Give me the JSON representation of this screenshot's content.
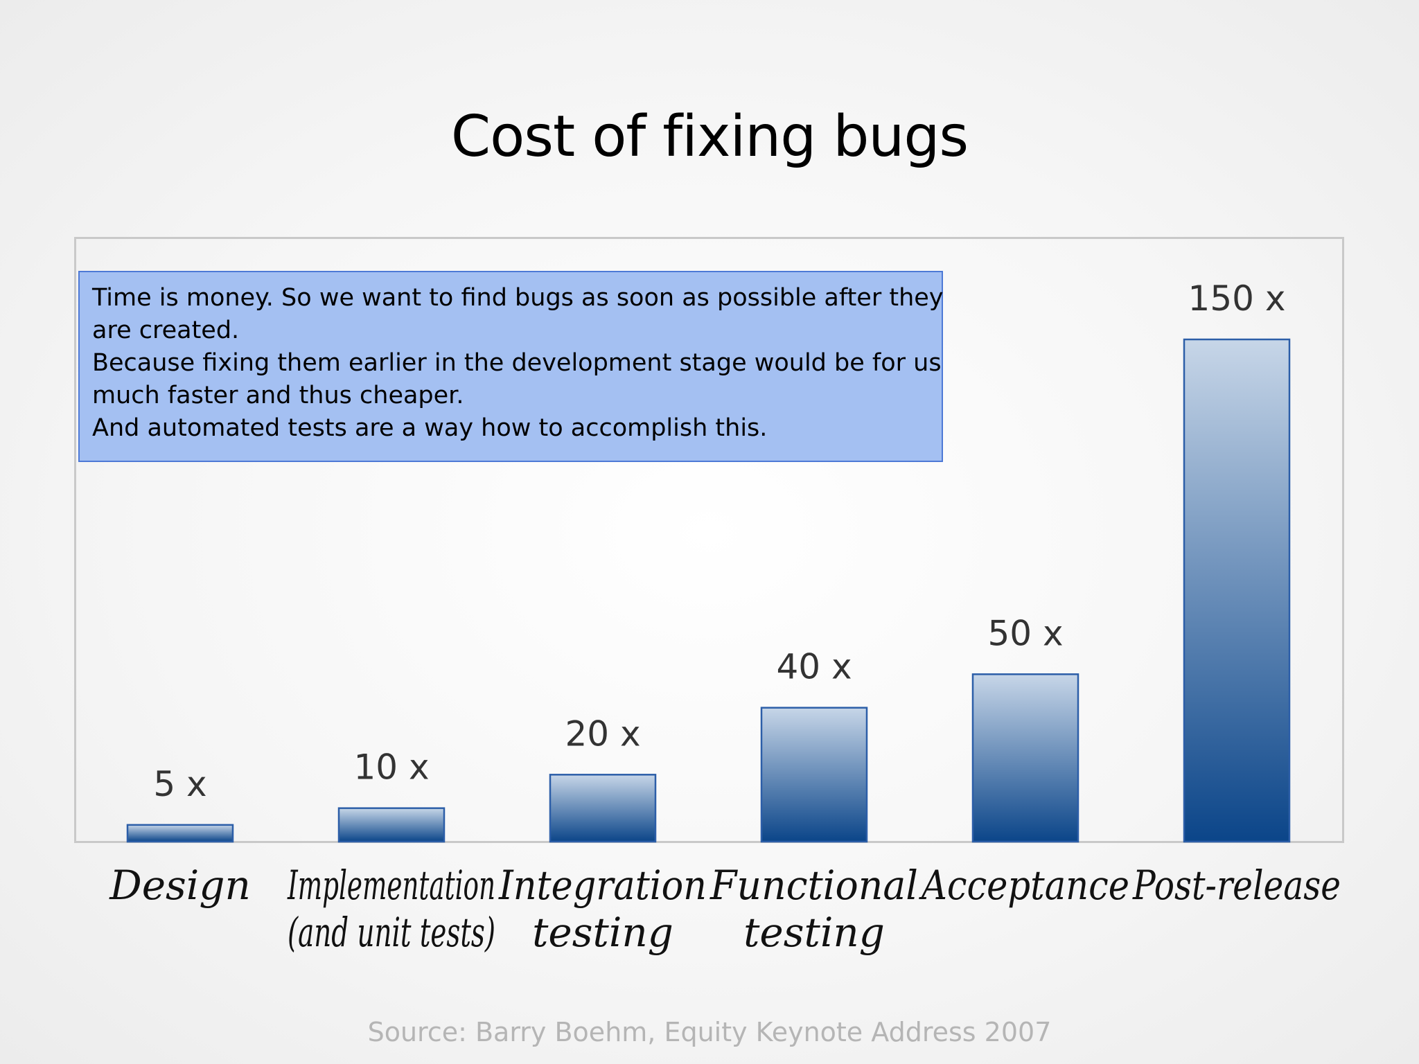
{
  "slide": {
    "title": "Cost of fixing bugs",
    "callout_lines": [
      "Time is money. So we want to find bugs as soon as possible after they",
      "are created.",
      "Because fixing them earlier in the development stage would be for us",
      "much faster and thus cheaper.",
      "And automated tests are a way how to accomplish this."
    ],
    "source": "Source: Barry Boehm, Equity Keynote Address 2007"
  },
  "chart_data": {
    "type": "bar",
    "categories": [
      [
        "Design"
      ],
      [
        "Implementation",
        "(and unit tests)"
      ],
      [
        "Integration",
        "testing"
      ],
      [
        "Functional",
        "testing"
      ],
      [
        "Acceptance"
      ],
      [
        "Post-release"
      ]
    ],
    "values": [
      5,
      10,
      20,
      40,
      50,
      150
    ],
    "data_labels": [
      "5 x",
      "10 x",
      "20 x",
      "40 x",
      "50 x",
      "150 x"
    ],
    "ylim": [
      0,
      150
    ],
    "grid": false,
    "legend": "none",
    "colors": {
      "bar_top": "#c7d6e8",
      "bar_bottom": "#0b4589",
      "bar_stroke": "#2c5ea8"
    }
  }
}
